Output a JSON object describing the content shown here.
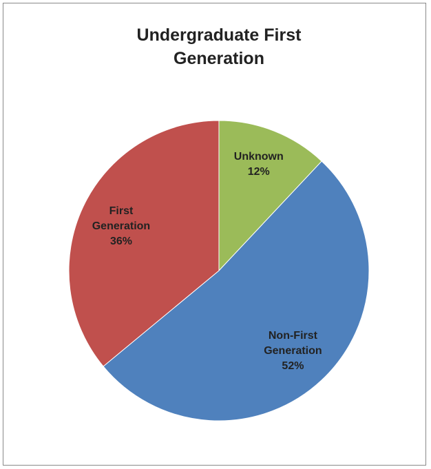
{
  "chart_data": {
    "type": "pie",
    "title": "Undergraduate First Generation",
    "categories": [
      "Unknown",
      "Non-First Generation",
      "First Generation"
    ],
    "values": [
      12,
      52,
      36
    ],
    "value_labels": [
      "12%",
      "52%",
      "36%"
    ],
    "colors": [
      "#9bbb59",
      "#4f81bd",
      "#c0504d"
    ]
  }
}
